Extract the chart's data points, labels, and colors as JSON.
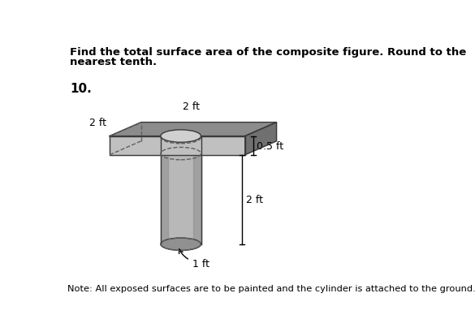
{
  "title_line1": "Find the total surface area of the composite figure. Round to the",
  "title_line2": "nearest tenth.",
  "problem_number": "10.",
  "note_text": "Note: All exposed surfaces are to be painted and the cylinder is attached to the ground.",
  "label_2ft_left": "2 ft",
  "label_2ft_top": "2 ft",
  "label_05ft": "0.5 ft",
  "label_2ft_height": "2 ft",
  "label_1ft": "1 ft",
  "bg_color": "#ffffff",
  "color_top": "#8c8c8c",
  "color_front": "#c0c0c0",
  "color_right": "#707070",
  "color_cyl_body": "#b8b8b8",
  "color_cyl_dark": "#909090",
  "color_cyl_top": "#d0d0d0",
  "color_edge": "#3a3a3a",
  "color_dash": "#606060"
}
